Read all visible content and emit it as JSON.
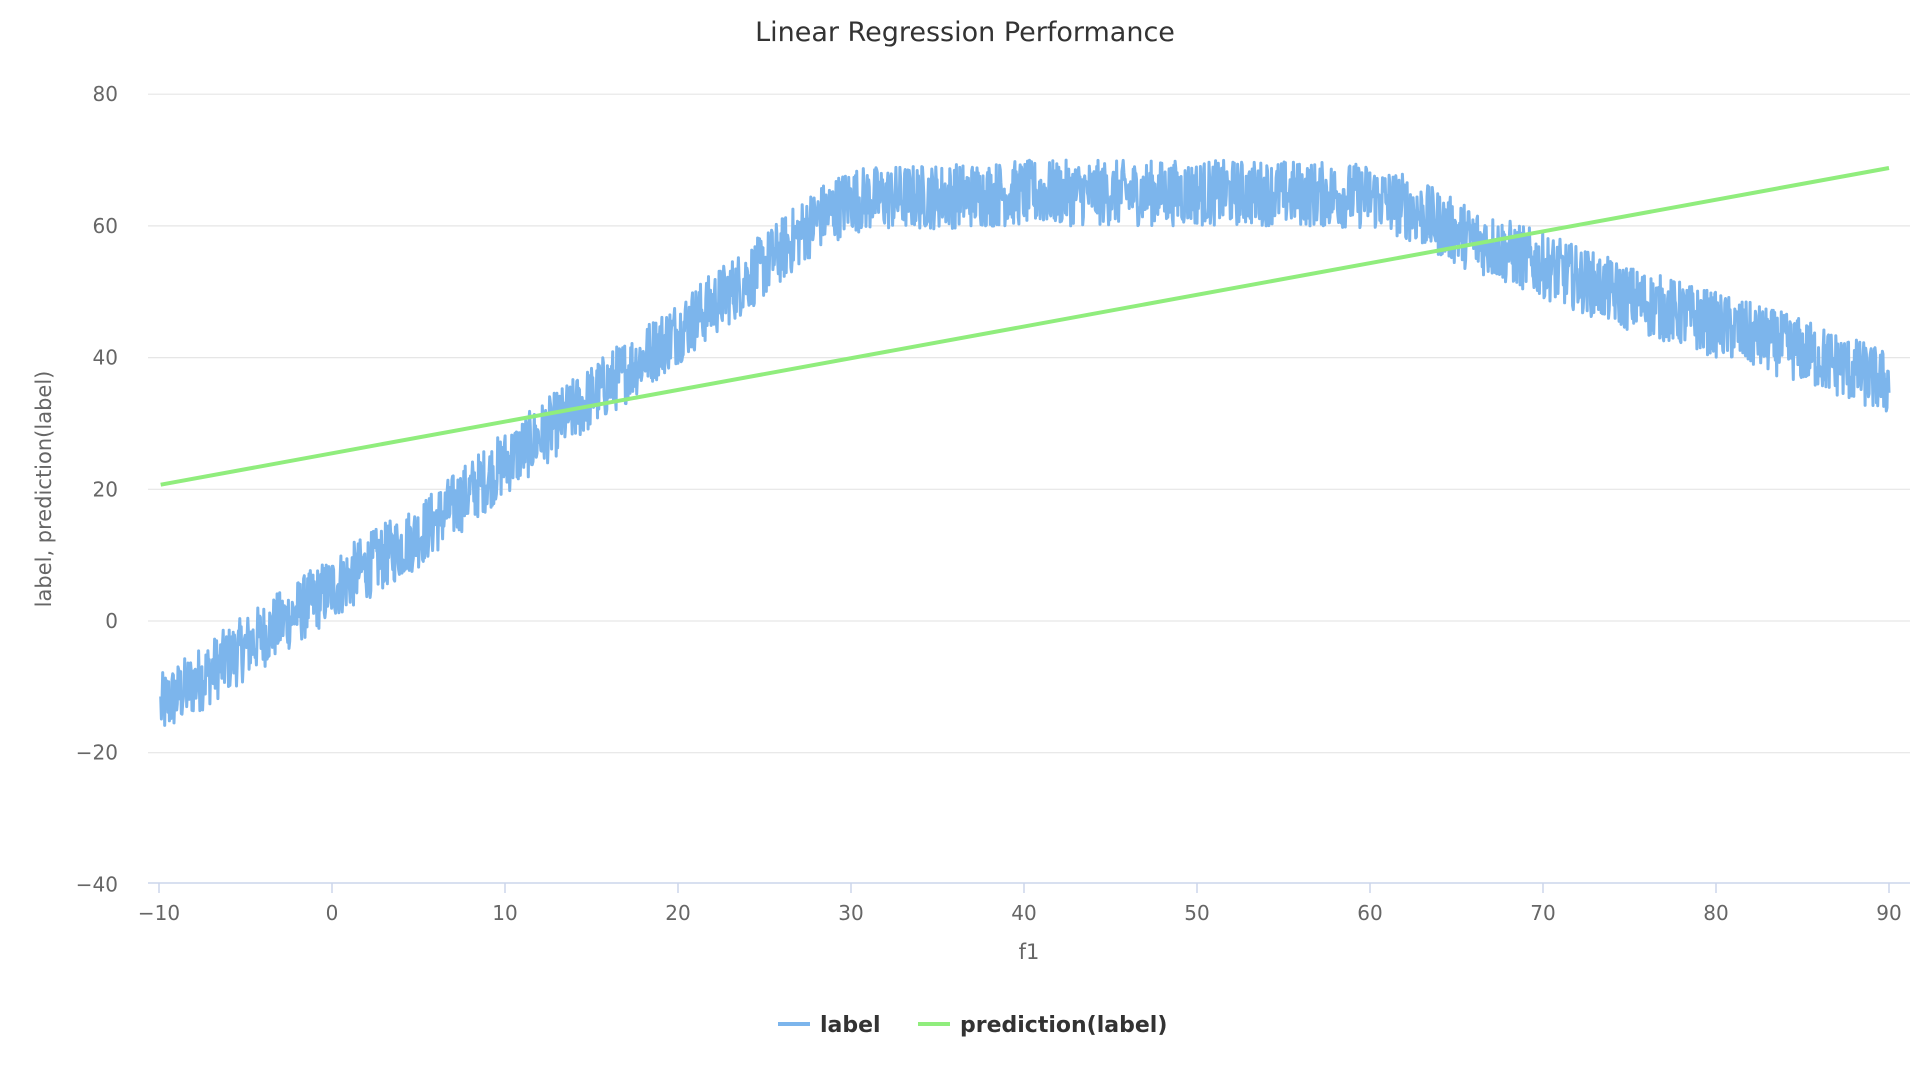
{
  "chart_data": {
    "type": "line",
    "title": "Linear Regression Performance",
    "xlabel": "f1",
    "ylabel": "label, prediction(label)",
    "xlim": [
      -10,
      90
    ],
    "ylim": [
      -40,
      80
    ],
    "x_ticks": [
      -10,
      0,
      10,
      20,
      30,
      40,
      50,
      60,
      70,
      80,
      90
    ],
    "y_ticks": [
      -40,
      -20,
      0,
      20,
      40,
      60,
      80
    ],
    "x_tick_labels": [
      "−10",
      "0",
      "10",
      "20",
      "30",
      "40",
      "50",
      "60",
      "70",
      "80",
      "90"
    ],
    "y_tick_labels": [
      "−40",
      "−20",
      "0",
      "20",
      "40",
      "60",
      "80"
    ],
    "grid": true,
    "legend_position": "bottom-center",
    "series": [
      {
        "name": "label",
        "color": "#7cb5ec",
        "style": "noisy-band",
        "noise_amplitude": 5,
        "trend_x": [
          -9.9,
          -5,
          0,
          5,
          10,
          15,
          20,
          25,
          28,
          30,
          40,
          50,
          55,
          60,
          62,
          65,
          70,
          75,
          80,
          85,
          90
        ],
        "trend_y": [
          -13,
          -4,
          5,
          13,
          24,
          34,
          44,
          54,
          61,
          64,
          65,
          65,
          65,
          64.5,
          63,
          59,
          54,
          49,
          45,
          41,
          36
        ]
      },
      {
        "name": "prediction(label)",
        "color": "#90ed7d",
        "style": "line",
        "x": [
          -9.9,
          90
        ],
        "y": [
          20.7,
          68.8
        ]
      }
    ]
  }
}
